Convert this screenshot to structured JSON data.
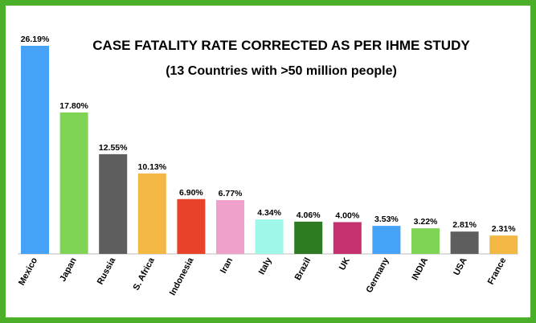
{
  "chart_data": {
    "type": "bar",
    "title": "CASE FATALITY RATE CORRECTED AS PER IHME STUDY",
    "subtitle": "(13 Countries with >50 million people)",
    "categories": [
      "Mexico",
      "Japan",
      "Russia",
      "S. Africa",
      "Indonesia",
      "Iran",
      "Italy",
      "Brazil",
      "UK",
      "Germany",
      "INDIA",
      "USA",
      "France"
    ],
    "values": [
      26.19,
      17.8,
      12.55,
      10.13,
      6.9,
      6.77,
      4.34,
      4.06,
      4.0,
      3.53,
      3.22,
      2.81,
      2.31
    ],
    "value_labels": [
      "26.19%",
      "17.80%",
      "12.55%",
      "10.13%",
      "6.90%",
      "6.77%",
      "4.34%",
      "4.06%",
      "4.00%",
      "3.53%",
      "3.22%",
      "2.81%",
      "2.31%"
    ],
    "colors": [
      "#46a2f7",
      "#7fd455",
      "#5e5e5e",
      "#f2b843",
      "#e8432a",
      "#f0a1cb",
      "#9ff7ea",
      "#2d7a22",
      "#c4316e",
      "#46a2f7",
      "#7fd455",
      "#5e5e5e",
      "#f2b843"
    ],
    "ylim": [
      0,
      26.19
    ],
    "grid": false,
    "legend": "none",
    "xlabel": "",
    "ylabel": ""
  },
  "frame_color": "#4caf2a"
}
